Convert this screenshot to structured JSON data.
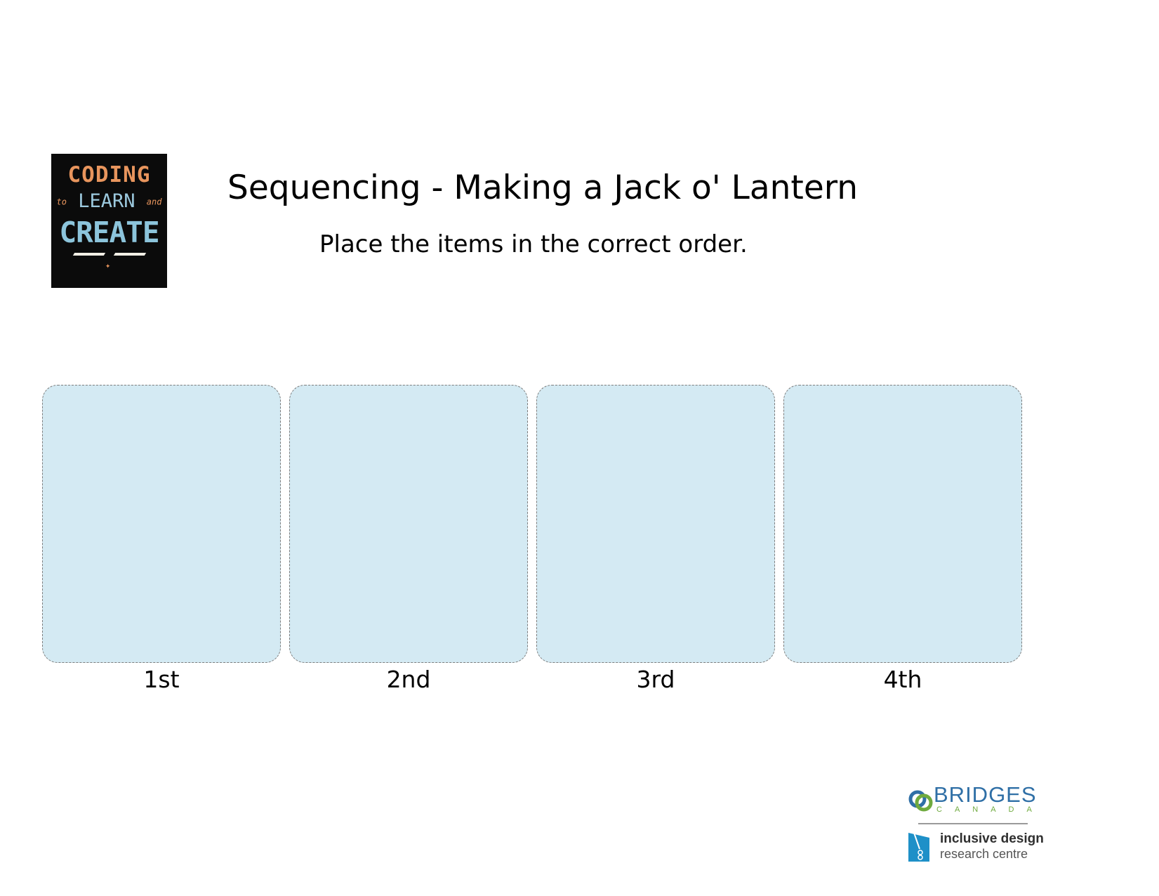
{
  "logo": {
    "line1": "CODING",
    "line2_small_left": "to",
    "line2": "LEARN",
    "line2_small_right": "and",
    "line3": "CREATE"
  },
  "title": "Sequencing - Making a Jack o' Lantern",
  "instructions": "Place the items in the correct order.",
  "slots": [
    {
      "label": "1st"
    },
    {
      "label": "2nd"
    },
    {
      "label": "3rd"
    },
    {
      "label": "4th"
    }
  ],
  "partners": {
    "bridges_name": "BRIDGES",
    "bridges_sub": "CANADA",
    "idrc_line1": "inclusive design",
    "idrc_line2": "research centre"
  },
  "colors": {
    "slot_fill": "#d4eaf3",
    "logo_background": "#0b0b0b",
    "logo_orange": "#e8955d",
    "logo_blue": "#8cc4db",
    "bridges_blue": "#2f6fa6",
    "bridges_green": "#6faa3e",
    "idrc_blue": "#1e90c8"
  }
}
